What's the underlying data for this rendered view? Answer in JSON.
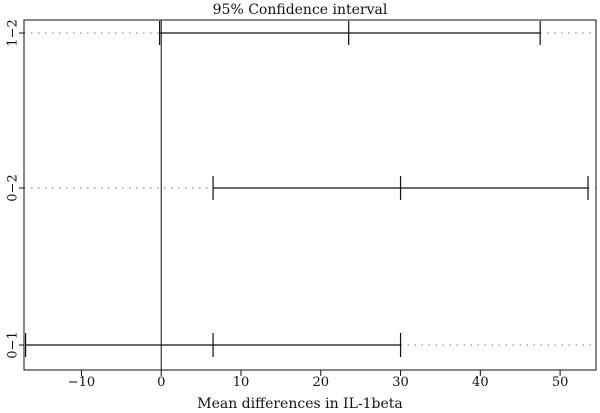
{
  "chart_data": {
    "type": "interval",
    "title": "95% Confidence interval",
    "xlabel": "Mean differences in IL-1beta",
    "ylabel": "",
    "xlim": [
      -17.2,
      54.5
    ],
    "xticks": [
      -10,
      0,
      10,
      20,
      30,
      40,
      50
    ],
    "xtick_labels": [
      "−10",
      "0",
      "10",
      "20",
      "30",
      "40",
      "50"
    ],
    "reference_line_x": 0,
    "comparisons": [
      {
        "label": "0−1",
        "lower": -17.0,
        "estimate": 6.5,
        "upper": 30.0
      },
      {
        "label": "0−2",
        "lower": 6.5,
        "estimate": 30.0,
        "upper": 53.5
      },
      {
        "label": "1−2",
        "lower": -0.2,
        "estimate": 23.5,
        "upper": 47.5
      }
    ],
    "colors": {
      "line": "#111111",
      "guide": "#777777"
    }
  }
}
